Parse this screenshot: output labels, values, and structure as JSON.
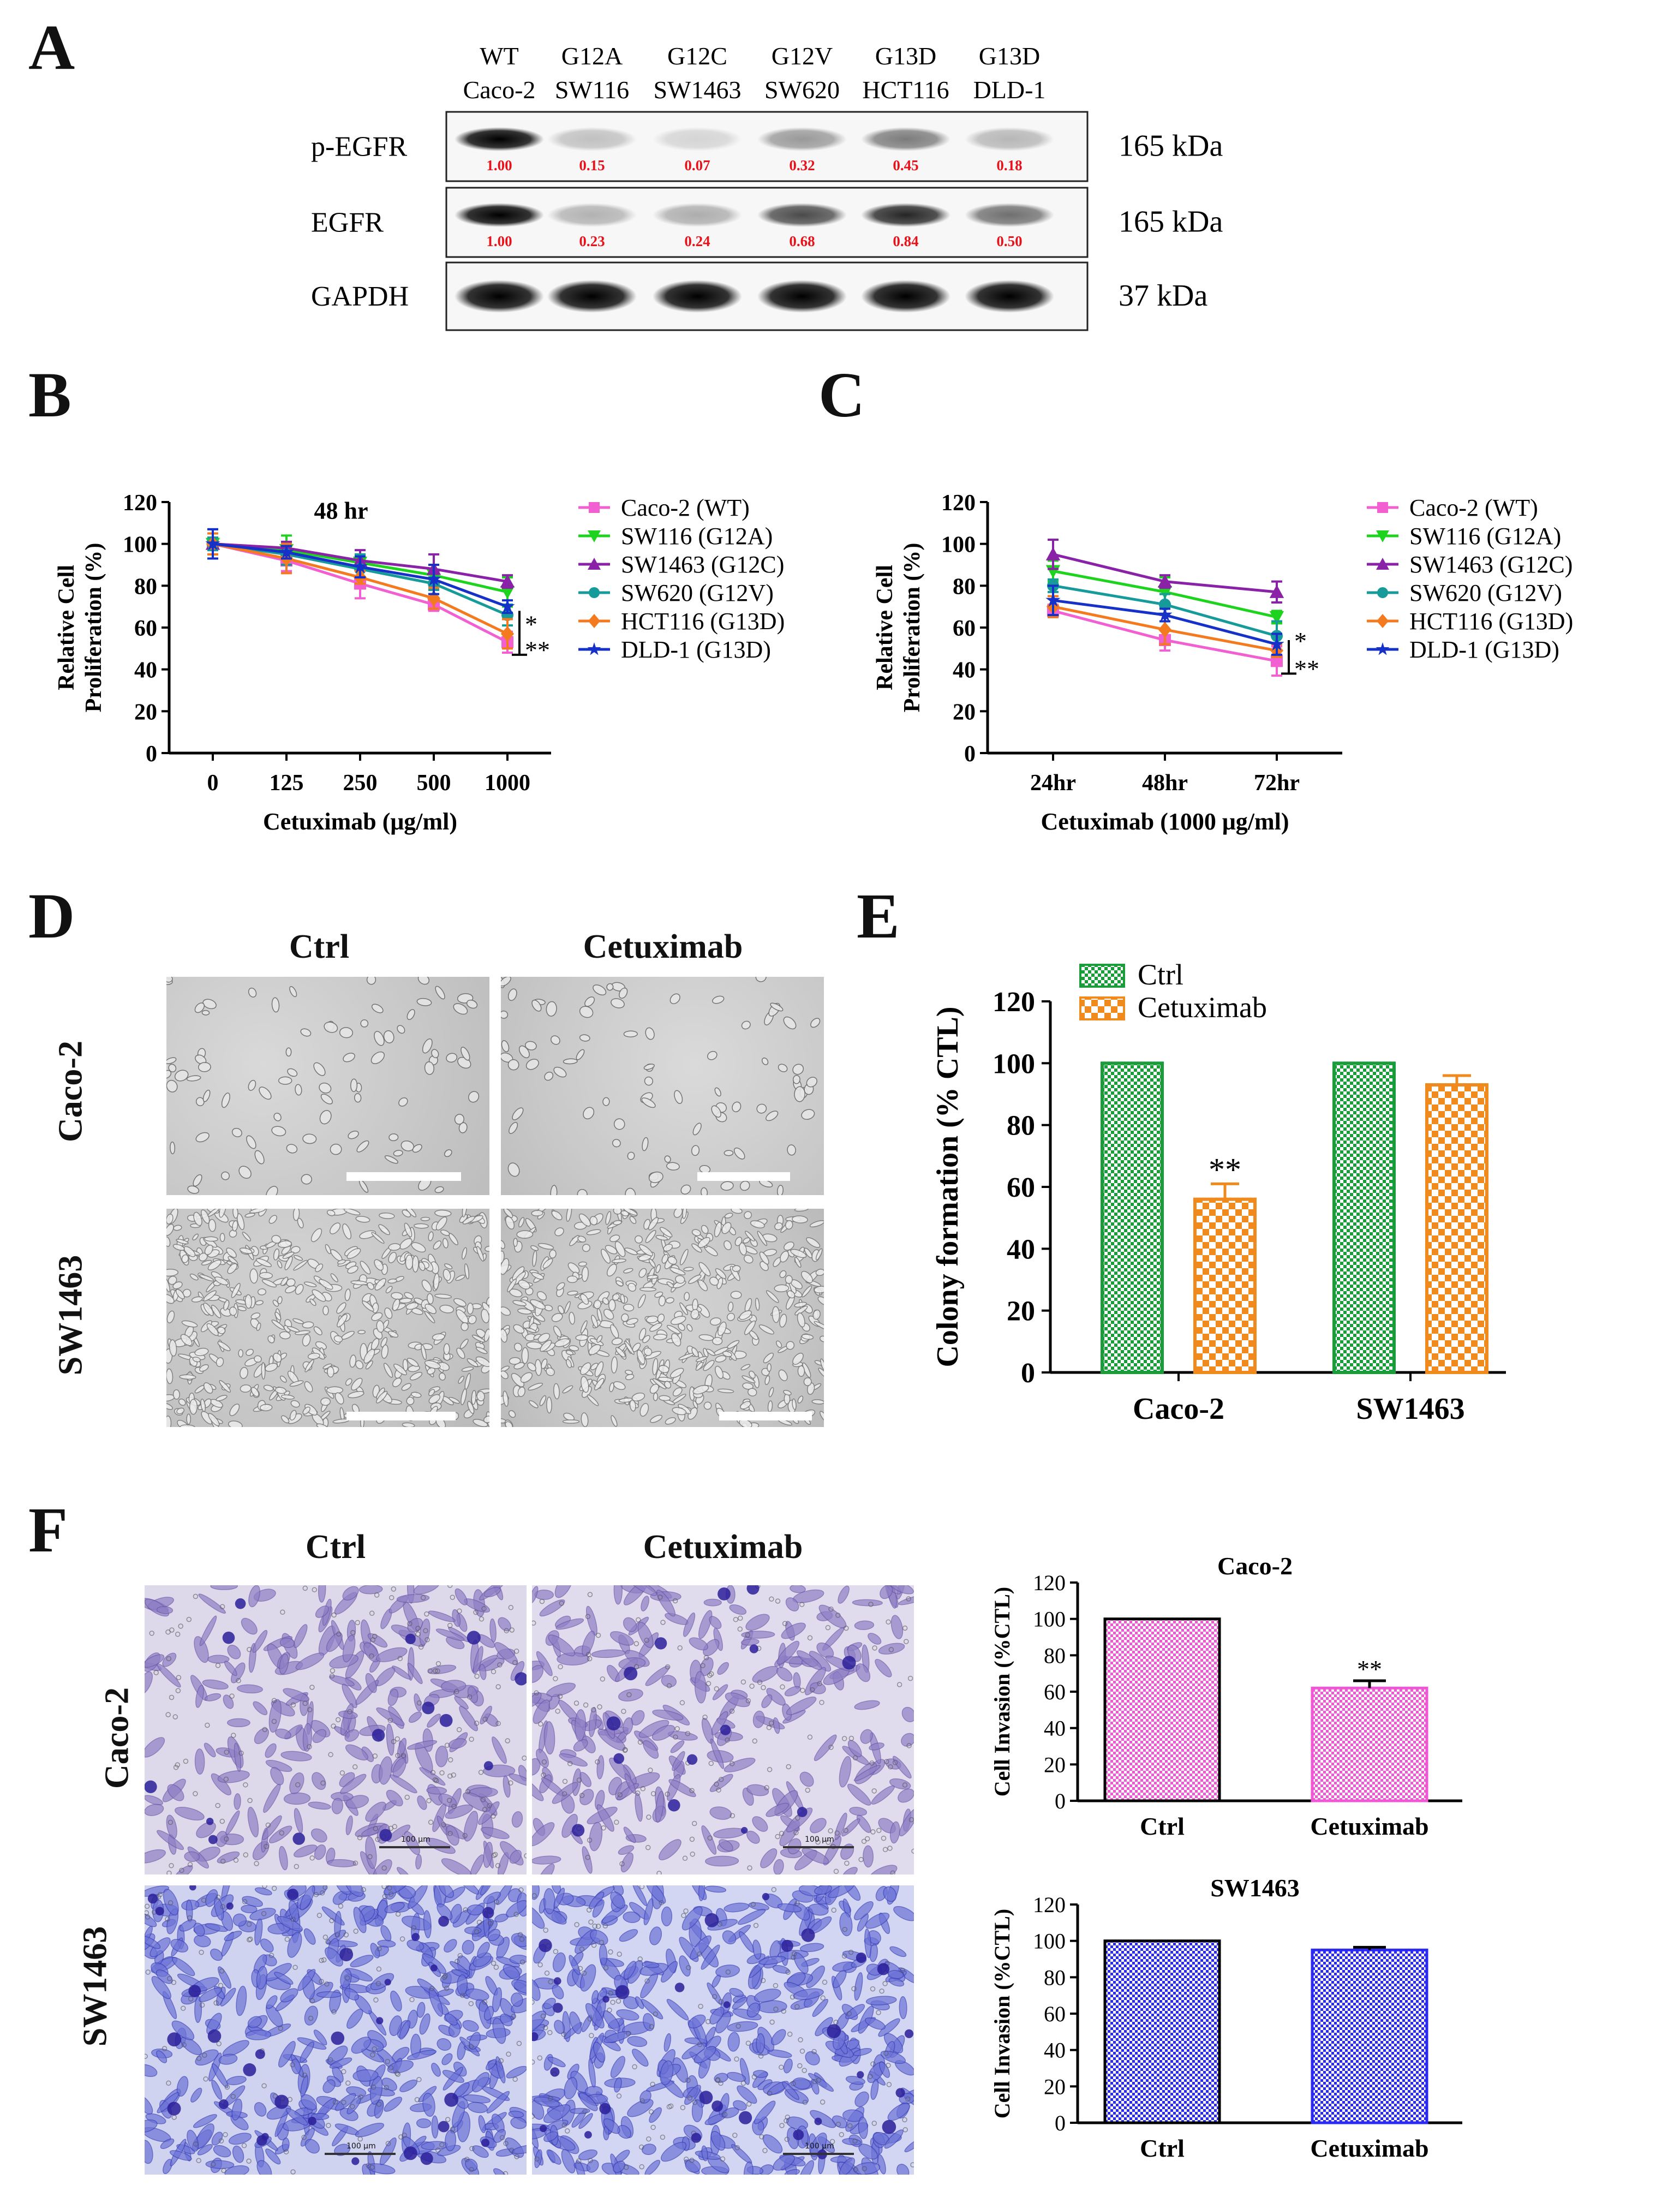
{
  "panels": {
    "a": "A",
    "b": "B",
    "c": "C",
    "d": "D",
    "e": "E",
    "f": "F"
  },
  "panel_a": {
    "lanes": [
      {
        "top": "WT",
        "bottom": "Caco-2"
      },
      {
        "top": "G12A",
        "bottom": "SW116"
      },
      {
        "top": "G12C",
        "bottom": "SW1463"
      },
      {
        "top": "G12V",
        "bottom": "SW620"
      },
      {
        "top": "G13D",
        "bottom": "HCT116"
      },
      {
        "top": "G13D",
        "bottom": "DLD-1"
      }
    ],
    "blots": [
      {
        "label": "p-EGFR",
        "size": "165 kDa",
        "values": [
          "1.00",
          "0.15",
          "0.07",
          "0.32",
          "0.45",
          "0.18"
        ]
      },
      {
        "label": "EGFR",
        "size": "165 kDa",
        "values": [
          "1.00",
          "0.23",
          "0.24",
          "0.68",
          "0.84",
          "0.50"
        ]
      },
      {
        "label": "GAPDH",
        "size": "37 kDa",
        "values": []
      }
    ],
    "value_color": "#e8121b"
  },
  "panel_d": {
    "columns": [
      "Ctrl",
      "Cetuximab"
    ],
    "rows": [
      "Caco-2",
      "SW1463"
    ]
  },
  "panel_f": {
    "columns": [
      "Ctrl",
      "Cetuximab"
    ],
    "rows": [
      "Caco-2",
      "SW1463"
    ],
    "scale_label": "100 μm"
  },
  "chart_data": [
    {
      "id": "B",
      "type": "line",
      "ylabel_lines": [
        "Relative Cell",
        "Proliferation (%)"
      ],
      "xlabel": "Cetuximab (μg/ml)",
      "annotation": "48 hr",
      "categories": [
        "0",
        "125",
        "250",
        "500",
        "1000"
      ],
      "ylim": [
        0,
        120
      ],
      "yticks": [
        0,
        20,
        40,
        60,
        80,
        100,
        120
      ],
      "significance": [
        "*",
        "**"
      ],
      "series": [
        {
          "name": "Caco-2 (WT)",
          "color": "#f25fd0",
          "marker": "square",
          "values": [
            100,
            92,
            81,
            71,
            53
          ]
        },
        {
          "name": "SW116 (G12A)",
          "color": "#1ed31e",
          "marker": "triangle-down",
          "values": [
            100,
            97,
            91,
            85,
            77
          ]
        },
        {
          "name": "SW1463 (G12C)",
          "color": "#8a22a8",
          "marker": "triangle-up",
          "values": [
            100,
            98,
            92,
            88,
            82
          ]
        },
        {
          "name": "SW620 (G12V)",
          "color": "#169a9a",
          "marker": "circle",
          "values": [
            100,
            95,
            88,
            81,
            66
          ]
        },
        {
          "name": "HCT116 (G13D)",
          "color": "#f47a1f",
          "marker": "diamond",
          "values": [
            100,
            93,
            84,
            74,
            57
          ]
        },
        {
          "name": "DLD-1 (G13D)",
          "color": "#1531c8",
          "marker": "star",
          "values": [
            100,
            96,
            89,
            83,
            70
          ]
        }
      ]
    },
    {
      "id": "C",
      "type": "line",
      "ylabel_lines": [
        "Relative Cell",
        "Proliferation (%)"
      ],
      "xlabel": "Cetuximab (1000 μg/ml)",
      "categories": [
        "24hr",
        "48hr",
        "72hr"
      ],
      "ylim": [
        0,
        120
      ],
      "yticks": [
        0,
        20,
        40,
        60,
        80,
        100,
        120
      ],
      "significance": [
        "*",
        "**"
      ],
      "series": [
        {
          "name": "Caco-2 (WT)",
          "color": "#f25fd0",
          "marker": "square",
          "values": [
            68,
            54,
            44
          ]
        },
        {
          "name": "SW116 (G12A)",
          "color": "#1ed31e",
          "marker": "triangle-down",
          "values": [
            87,
            77,
            65
          ]
        },
        {
          "name": "SW1463 (G12C)",
          "color": "#8a22a8",
          "marker": "triangle-up",
          "values": [
            95,
            82,
            77
          ]
        },
        {
          "name": "SW620 (G12V)",
          "color": "#169a9a",
          "marker": "circle",
          "values": [
            80,
            71,
            56
          ]
        },
        {
          "name": "HCT116 (G13D)",
          "color": "#f47a1f",
          "marker": "diamond",
          "values": [
            70,
            59,
            49
          ]
        },
        {
          "name": "DLD-1 (G13D)",
          "color": "#1531c8",
          "marker": "star",
          "values": [
            73,
            66,
            52
          ]
        }
      ]
    },
    {
      "id": "E",
      "type": "bar",
      "ylabel": "Colony formation (% CTL)",
      "categories": [
        "Caco-2",
        "SW1463"
      ],
      "ylim": [
        0,
        120
      ],
      "yticks": [
        0,
        20,
        40,
        60,
        80,
        100,
        120
      ],
      "series": [
        {
          "name": "Ctrl",
          "color": "#1a9c3a",
          "values": [
            100,
            100
          ],
          "errors": [
            0,
            0
          ]
        },
        {
          "name": "Cetuximab",
          "color": "#f08a1c",
          "values": [
            56,
            93
          ],
          "errors": [
            5,
            3
          ]
        }
      ],
      "significance": [
        {
          "series": 1,
          "category": 0,
          "text": "**"
        }
      ]
    },
    {
      "id": "F-Caco-2",
      "type": "bar",
      "title": "Caco-2",
      "ylabel": "Cell Invasion (%CTL)",
      "categories": [
        "Ctrl",
        "Cetuximab"
      ],
      "ylim": [
        0,
        120
      ],
      "yticks": [
        0,
        20,
        40,
        60,
        80,
        100,
        120
      ],
      "values": [
        100,
        62
      ],
      "errors": [
        0,
        4
      ],
      "color": "#f057d4",
      "significance": [
        {
          "category": 1,
          "text": "**"
        }
      ]
    },
    {
      "id": "F-SW1463",
      "type": "bar",
      "title": "SW1463",
      "ylabel": "Cell Invasion (%CTL)",
      "categories": [
        "Ctrl",
        "Cetuximab"
      ],
      "ylim": [
        0,
        120
      ],
      "yticks": [
        0,
        20,
        40,
        60,
        80,
        100,
        120
      ],
      "values": [
        100,
        95
      ],
      "errors": [
        0,
        1.5
      ],
      "color": "#2a2af2",
      "significance": []
    }
  ]
}
